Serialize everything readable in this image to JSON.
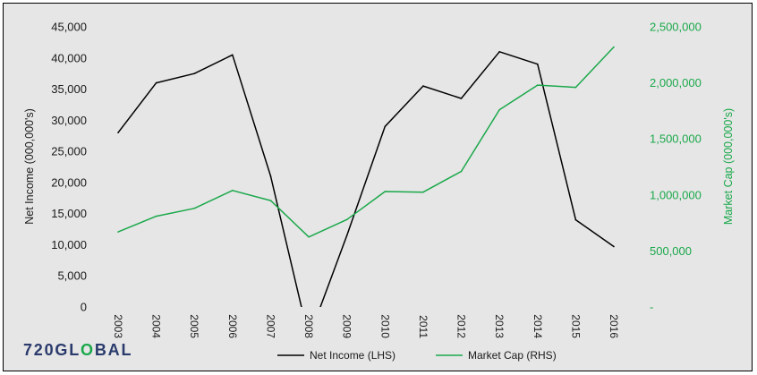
{
  "chart_data": {
    "type": "line",
    "categories": [
      "2003",
      "2004",
      "2005",
      "2006",
      "2007",
      "2008",
      "2009",
      "2010",
      "2011",
      "2012",
      "2013",
      "2014",
      "2015",
      "2016"
    ],
    "series": [
      {
        "name": "Net Income (LHS)",
        "axis": "left",
        "color": "#000000",
        "values": [
          28000,
          36000,
          37500,
          40500,
          21000,
          -5000,
          11500,
          29000,
          35500,
          33500,
          41000,
          39000,
          14000,
          9700
        ]
      },
      {
        "name": "Market Cap (RHS)",
        "axis": "right",
        "color": "#1aa84a",
        "values": [
          670000,
          810000,
          880000,
          1040000,
          950000,
          625000,
          780000,
          1030000,
          1025000,
          1210000,
          1760000,
          1980000,
          1960000,
          2320000
        ]
      }
    ],
    "ylabel_left": "Net Income (000,000's)",
    "ylabel_right": "Market Cap (000,000's)",
    "ylim_left": [
      0,
      45000
    ],
    "ylim_right": [
      0,
      2500000
    ],
    "yticks_left": [
      "0",
      "5,000",
      "10,000",
      "15,000",
      "20,000",
      "25,000",
      "30,000",
      "35,000",
      "40,000",
      "45,000"
    ],
    "yticks_right": [
      "-",
      "500,000",
      "1,000,000",
      "1,500,000",
      "2,000,000",
      "2,500,000"
    ],
    "grid": false,
    "legend_position": "bottom"
  },
  "logo": {
    "text": "720GL",
    "accent": "O",
    "text_end": "BAL"
  }
}
